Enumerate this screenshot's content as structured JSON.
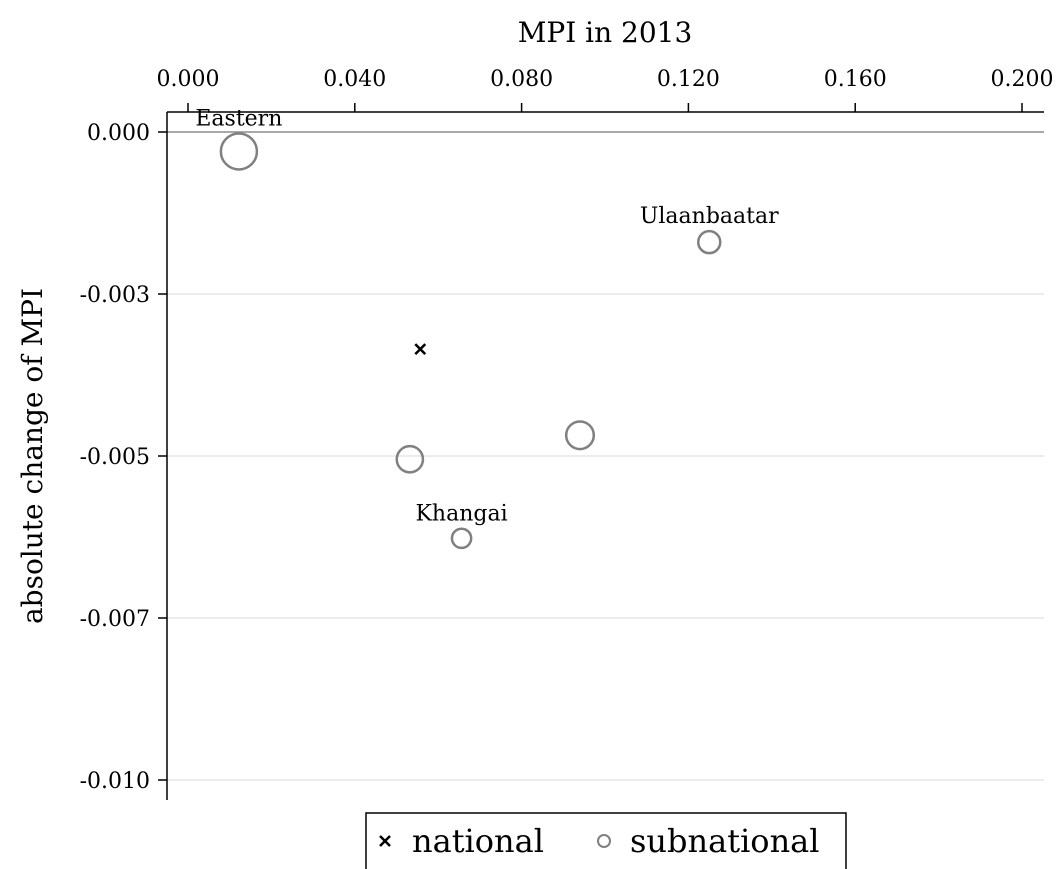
{
  "chart_data": {
    "type": "scatter",
    "xlabel": "MPI in 2013",
    "ylabel": "absolute change of MPI",
    "xlim": [
      0.0,
      0.2
    ],
    "ylim": [
      -0.01,
      0.0
    ],
    "x_ticks": [
      "0.000",
      "0.040",
      "0.080",
      "0.120",
      "0.160",
      "0.200"
    ],
    "x_tick_values": [
      0.0,
      0.04,
      0.08,
      0.12,
      0.16,
      0.2
    ],
    "y_ticks": [
      "0.000",
      "-0.003",
      "-0.005",
      "-0.007",
      "-0.010"
    ],
    "y_tick_values": [
      0.0,
      -0.0025,
      -0.005,
      -0.0075,
      -0.01
    ],
    "grid": "horizontal",
    "reference_line_y": 0.0,
    "legend_position": "bottom",
    "series": [
      {
        "name": "national",
        "marker": "x",
        "points": [
          {
            "x": 0.0557,
            "y": -0.00335,
            "label": ""
          }
        ]
      },
      {
        "name": "subnational",
        "marker": "circle",
        "points": [
          {
            "x": 0.0122,
            "y": -0.0003,
            "size": 1.0,
            "label": "Eastern"
          },
          {
            "x": 0.125,
            "y": -0.0017,
            "size": 0.5,
            "label": "Ulaanbaatar"
          },
          {
            "x": 0.0532,
            "y": -0.00505,
            "size": 0.65,
            "label": ""
          },
          {
            "x": 0.094,
            "y": -0.00468,
            "size": 0.7,
            "label": ""
          },
          {
            "x": 0.0656,
            "y": -0.00627,
            "size": 0.4,
            "label": "Khangai"
          }
        ]
      }
    ]
  }
}
